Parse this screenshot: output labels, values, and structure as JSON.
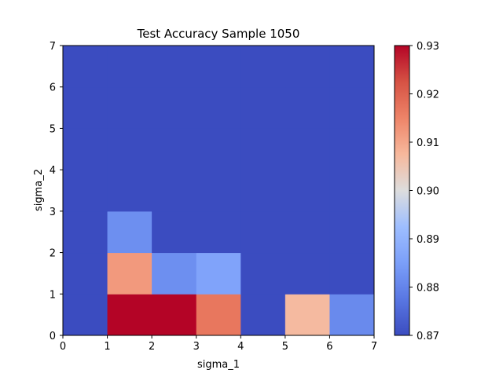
{
  "chart_data": {
    "type": "heatmap",
    "title": "Test Accuracy Sample 1050",
    "xlabel": "sigma_1",
    "ylabel": "sigma_2",
    "xlim": [
      0,
      7
    ],
    "ylim": [
      0,
      7
    ],
    "x_ticks": [
      "0",
      "1",
      "2",
      "3",
      "4",
      "5",
      "6",
      "7"
    ],
    "y_ticks": [
      "0",
      "1",
      "2",
      "3",
      "4",
      "5",
      "6",
      "7"
    ],
    "colormap": "coolwarm",
    "color_range": [
      0.87,
      0.93
    ],
    "colorbar_ticks": [
      "0.87",
      "0.88",
      "0.89",
      "0.90",
      "0.91",
      "0.92",
      "0.93"
    ],
    "colorbar_tick_values": [
      0.87,
      0.88,
      0.89,
      0.9,
      0.91,
      0.92,
      0.93
    ],
    "grid": false,
    "cells_note_row_order": "row 0 = sigma_2 in [0,1] (bottom) to row 6 = sigma_2 in [6,7] (top); columns sigma_1 0..6",
    "values": [
      [
        0.87,
        0.93,
        0.93,
        0.917,
        0.87,
        0.907,
        0.881
      ],
      [
        0.87,
        0.912,
        0.882,
        0.886,
        0.87,
        0.87,
        0.87
      ],
      [
        0.87,
        0.882,
        0.87,
        0.87,
        0.87,
        0.87,
        0.87
      ],
      [
        0.87,
        0.87,
        0.87,
        0.87,
        0.87,
        0.87,
        0.87
      ],
      [
        0.87,
        0.87,
        0.87,
        0.87,
        0.87,
        0.87,
        0.87
      ],
      [
        0.87,
        0.87,
        0.87,
        0.87,
        0.87,
        0.87,
        0.87
      ],
      [
        0.87,
        0.87,
        0.87,
        0.87,
        0.87,
        0.87,
        0.87
      ]
    ]
  }
}
